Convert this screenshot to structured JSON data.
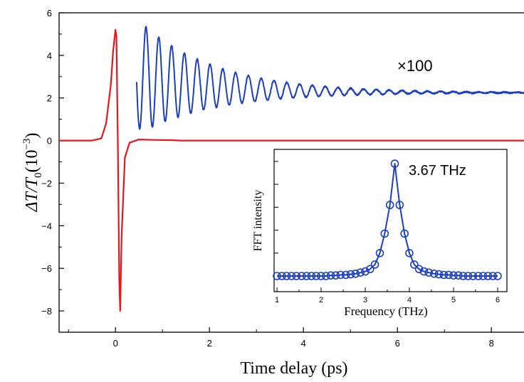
{
  "chart_data": [
    {
      "type": "line",
      "xlabel": "Time delay (ps)",
      "ylabel_symbol": "ΔT/T",
      "ylabel_sub": "0",
      "ylabel_unit_base": "(10",
      "ylabel_unit_exp": "−3",
      "ylabel_unit_close": ")",
      "xlim": [
        -1.2,
        8.8
      ],
      "ylim": [
        -9,
        6
      ],
      "xticks": [
        0,
        2,
        4,
        6,
        8
      ],
      "xtick_labels": [
        "0",
        "2",
        "4",
        "6",
        "8"
      ],
      "yticks": [
        -8,
        -6,
        -4,
        -2,
        0,
        2,
        4,
        6
      ],
      "ytick_labels": [
        "−8",
        "−6",
        "−4",
        "−2",
        "0",
        "2",
        "4",
        "6"
      ],
      "grid": false,
      "annotation": "×100",
      "series": [
        {
          "color": "#e8151b",
          "x": [
            -1.2,
            -0.5,
            -0.3,
            -0.2,
            -0.1,
            -0.05,
            0.0,
            0.02,
            0.05,
            0.08,
            0.1,
            0.13,
            0.2,
            0.3,
            0.5,
            0.8,
            1.2,
            1.4,
            8.8
          ],
          "y": [
            0,
            0,
            0.1,
            0.8,
            2.6,
            4.2,
            5.2,
            4.9,
            0,
            -6.5,
            -8.0,
            -4.5,
            -0.8,
            -0.1,
            0.05,
            0.03,
            0.02,
            0,
            0
          ]
        },
        {
          "color": "#1c3fbf",
          "model": "damped_oscillation",
          "x_start": 0.45,
          "x_end": 8.8,
          "baseline_start": 3.0,
          "baseline_end": 2.25,
          "first_peak": 5.45,
          "first_trough": 0.6,
          "frequency_THz": 3.67,
          "decay_ps": 1.6
        }
      ]
    },
    {
      "type": "line",
      "xlabel": "Frequency (THz)",
      "ylabel": "FFT intensity",
      "xlim": [
        1,
        6
      ],
      "ylim": [
        0,
        1.08
      ],
      "xticks": [
        1,
        2,
        3,
        4,
        5,
        6
      ],
      "xtick_labels": [
        "1",
        "2",
        "3",
        "4",
        "5",
        "6"
      ],
      "annotation": "3.67 THz",
      "series": [
        {
          "color": "#1c3fbf",
          "marker": "circle-open",
          "x": [
            1.0,
            1.11,
            1.22,
            1.33,
            1.44,
            1.56,
            1.67,
            1.78,
            1.89,
            2.0,
            2.11,
            2.22,
            2.33,
            2.44,
            2.56,
            2.67,
            2.78,
            2.89,
            3.0,
            3.11,
            3.22,
            3.33,
            3.44,
            3.56,
            3.67,
            3.78,
            3.89,
            4.0,
            4.11,
            4.22,
            4.33,
            4.44,
            4.56,
            4.67,
            4.78,
            4.89,
            5.0,
            5.11,
            5.22,
            5.33,
            5.44,
            5.56,
            5.67,
            5.78,
            5.89,
            6.0
          ],
          "y": [
            0.0,
            0.0,
            0.0,
            0.0,
            0.0,
            0.0,
            0.0,
            0.0,
            0.0,
            0.0,
            0.0,
            0.005,
            0.005,
            0.01,
            0.01,
            0.015,
            0.02,
            0.03,
            0.04,
            0.06,
            0.1,
            0.2,
            0.37,
            0.62,
            0.98,
            0.62,
            0.37,
            0.2,
            0.1,
            0.06,
            0.04,
            0.03,
            0.02,
            0.015,
            0.01,
            0.01,
            0.005,
            0.005,
            0.0,
            0.0,
            0.0,
            0.0,
            0.0,
            0.0,
            0.0,
            0.0
          ]
        }
      ]
    }
  ]
}
